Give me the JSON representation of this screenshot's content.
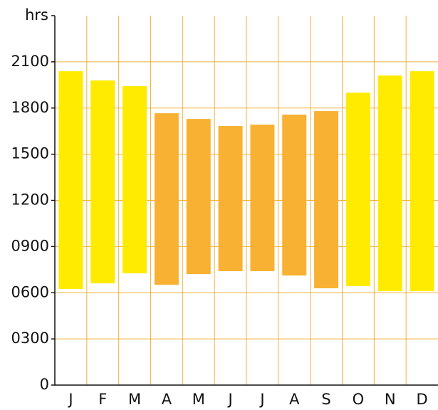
{
  "chart_data": {
    "type": "floating-bar",
    "ylabel": "hrs",
    "categories": [
      "J",
      "F",
      "M",
      "A",
      "M",
      "J",
      "J",
      "A",
      "S",
      "O",
      "N",
      "D"
    ],
    "low": [
      6.24,
      6.61,
      7.26,
      6.52,
      7.21,
      7.4,
      7.4,
      7.12,
      6.29,
      6.43,
      6.1,
      6.1
    ],
    "high": [
      20.39,
      19.79,
      19.42,
      17.66,
      17.29,
      16.83,
      16.92,
      17.57,
      17.8,
      19.0,
      20.11,
      20.39
    ],
    "colors": [
      "#ffeb00",
      "#ffeb00",
      "#ffeb00",
      "#f8b133",
      "#f8b133",
      "#f8b133",
      "#f8b133",
      "#f8b133",
      "#f8b133",
      "#ffeb00",
      "#ffeb00",
      "#ffeb00"
    ],
    "ylim": [
      0,
      24
    ],
    "yticks": [
      0,
      {
        "value": 3,
        "label": "0300"
      },
      {
        "value": 6,
        "label": "0600"
      },
      {
        "value": 9,
        "label": "0900"
      },
      {
        "value": 12,
        "label": "1200"
      },
      {
        "value": 15,
        "label": "1500"
      },
      {
        "value": 18,
        "label": "1800"
      },
      {
        "value": 21,
        "label": "2100"
      }
    ],
    "grid": true,
    "grid_color": "#f3b13b"
  }
}
